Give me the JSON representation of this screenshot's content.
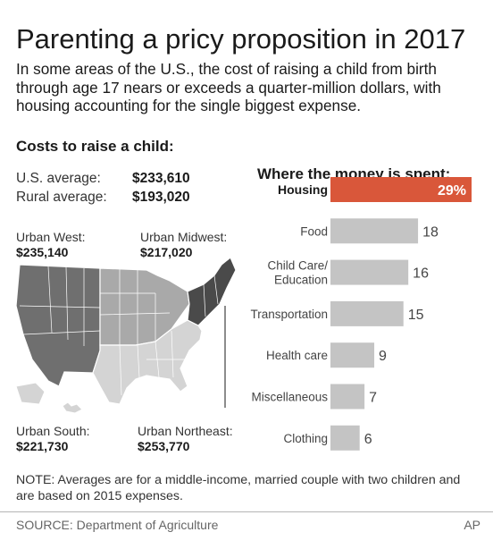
{
  "title": "Parenting a pricy proposition in 2017",
  "subtitle": "In some areas of the U.S., the cost of raising a child from birth through age 17 nears or exceeds a quarter-million dollars, with housing accounting for the single biggest expense.",
  "costs": {
    "heading": "Costs to raise a child:",
    "us_label": "U.S. average:",
    "us_value": "$233,610",
    "rural_label": "Rural average:",
    "rural_value": "$193,020"
  },
  "regions": {
    "west": {
      "name": "Urban West:",
      "value": "$235,140",
      "color": "#6f6f6f"
    },
    "midwest": {
      "name": "Urban Midwest:",
      "value": "$217,020",
      "color": "#a9a9a9"
    },
    "south": {
      "name": "Urban South:",
      "value": "$221,730",
      "color": "#d4d4d4"
    },
    "northeast": {
      "name": "Urban Northeast:",
      "value": "$253,770",
      "color": "#4a4a4a"
    }
  },
  "chart_data": {
    "type": "bar",
    "title": "Where the money is spent:",
    "orientation": "horizontal",
    "categories": [
      "Housing",
      "Food",
      "Child Care/ Education",
      "Transportation",
      "Health care",
      "Miscellaneous",
      "Clothing"
    ],
    "category_lines": [
      [
        "Housing"
      ],
      [
        "Food"
      ],
      [
        "Child Care/",
        "Education"
      ],
      [
        "Transportation"
      ],
      [
        "Health care"
      ],
      [
        "Miscellaneous"
      ],
      [
        "Clothing"
      ]
    ],
    "values": [
      29,
      18,
      16,
      15,
      9,
      7,
      6
    ],
    "value_labels": [
      "29%",
      "18",
      "16",
      "15",
      "9",
      "7",
      "6"
    ],
    "highlight_index": 0,
    "highlight_color": "#d9573a",
    "bar_color": "#c4c4c4",
    "xlim": [
      0,
      29
    ],
    "grid": false
  },
  "note": "NOTE: Averages are for a middle-income, married couple with two children and are based on 2015 expenses.",
  "source": "SOURCE: Department of Agriculture",
  "credit": "AP"
}
